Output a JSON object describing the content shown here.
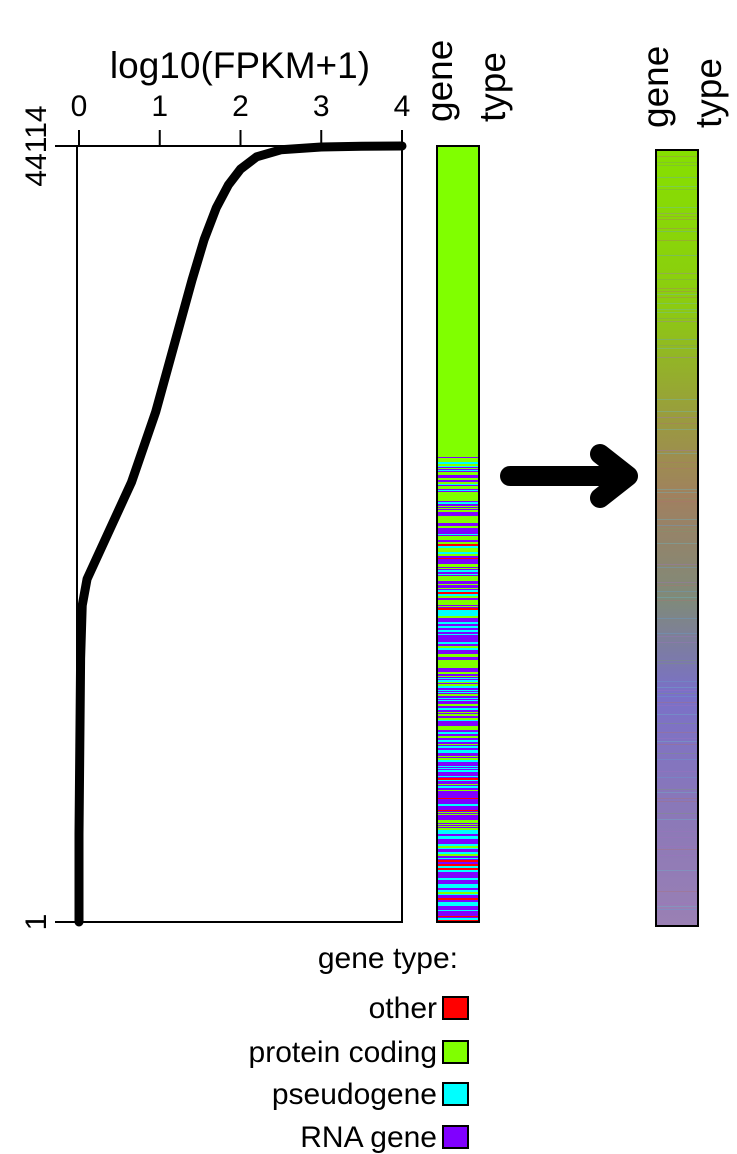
{
  "chart_data": {
    "type": "line",
    "title": "log10(FPKM+1)",
    "xlabel": "log10(FPKM+1)",
    "ylabel": "",
    "xlim": [
      0,
      4
    ],
    "ylim": [
      1,
      44114
    ],
    "x_ticks": [
      "0",
      "1",
      "2",
      "3",
      "4"
    ],
    "y_ticks": [
      "1",
      "44114"
    ],
    "series": [
      {
        "points": [
          [
            0,
            1
          ],
          [
            0.0,
            5000
          ],
          [
            0.01,
            10000
          ],
          [
            0.02,
            15000
          ],
          [
            0.04,
            18000
          ],
          [
            0.1,
            19500
          ],
          [
            0.2,
            20500
          ],
          [
            0.35,
            22000
          ],
          [
            0.5,
            23500
          ],
          [
            0.65,
            25000
          ],
          [
            0.8,
            27000
          ],
          [
            0.95,
            29000
          ],
          [
            1.1,
            31500
          ],
          [
            1.25,
            34000
          ],
          [
            1.4,
            36500
          ],
          [
            1.55,
            38800
          ],
          [
            1.7,
            40600
          ],
          [
            1.85,
            41900
          ],
          [
            2.0,
            42800
          ],
          [
            2.2,
            43500
          ],
          [
            2.5,
            43900
          ],
          [
            3.0,
            44060
          ],
          [
            3.5,
            44100
          ],
          [
            4.0,
            44114
          ]
        ]
      }
    ],
    "gene_type_column_label": [
      "gene",
      "type"
    ],
    "gene_type_column_after_label": [
      "gene",
      "type"
    ],
    "legend": {
      "title": "gene type:",
      "items": [
        {
          "label": "other",
          "color": "#ff0000"
        },
        {
          "label": "protein coding",
          "color": "#80ff00"
        },
        {
          "label": "pseudogene",
          "color": "#00ffff"
        },
        {
          "label": "RNA gene",
          "color": "#8000ff"
        }
      ]
    }
  },
  "colors": {
    "other": "#ff0000",
    "protein_coding": "#80ff00",
    "pseudogene": "#00ffff",
    "rna_gene": "#8000ff",
    "axis": "#000000",
    "arrow": "#000000"
  }
}
